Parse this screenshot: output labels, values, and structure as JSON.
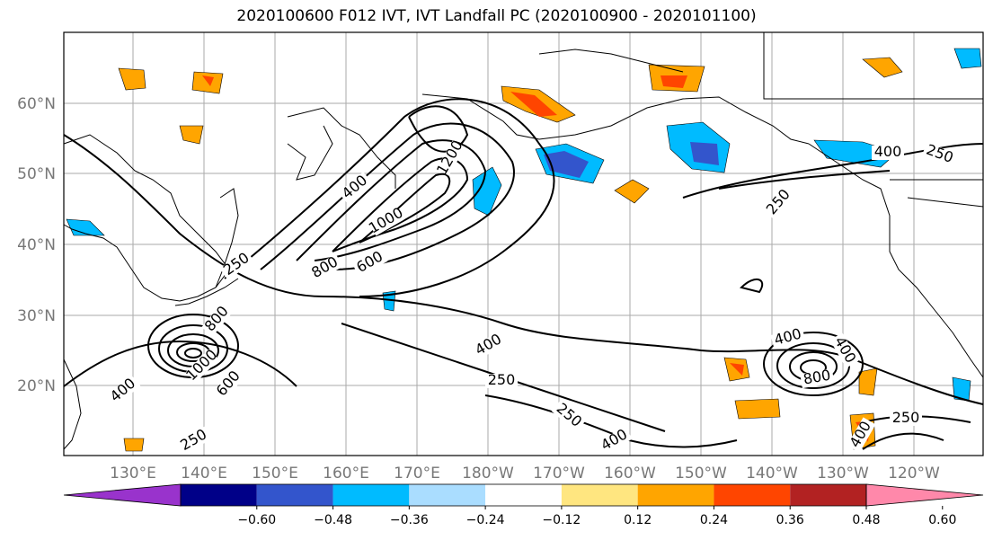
{
  "title": "2020100600 F012 IVT, IVT Landfall PC (2020100900 - 2020101100)",
  "lat_labels": [
    "60°N",
    "50°N",
    "40°N",
    "30°N",
    "20°N"
  ],
  "lon_labels": [
    "130°E",
    "140°E",
    "150°E",
    "160°E",
    "170°E",
    "180°W",
    "170°W",
    "160°W",
    "150°W",
    "140°W",
    "130°W",
    "120°W"
  ],
  "contour_labels": [
    "1200",
    "400",
    "1000",
    "800",
    "600",
    "250",
    "400",
    "800",
    "1000",
    "600",
    "400",
    "250",
    "250",
    "400",
    "250",
    "400",
    "250",
    "800",
    "400",
    "250",
    "250",
    "400",
    "400"
  ],
  "colorbar": {
    "ticks": [
      "−0.60",
      "−0.48",
      "−0.36",
      "−0.24",
      "−0.12",
      "0.12",
      "0.24",
      "0.36",
      "0.48",
      "0.60"
    ],
    "colors": [
      "#9933cc",
      "#000088",
      "#3355cc",
      "#00bbff",
      "#aaddff",
      "#ffffff",
      "#ffe680",
      "#ffa500",
      "#ff4500",
      "#b22222",
      "#ff88aa"
    ]
  }
}
